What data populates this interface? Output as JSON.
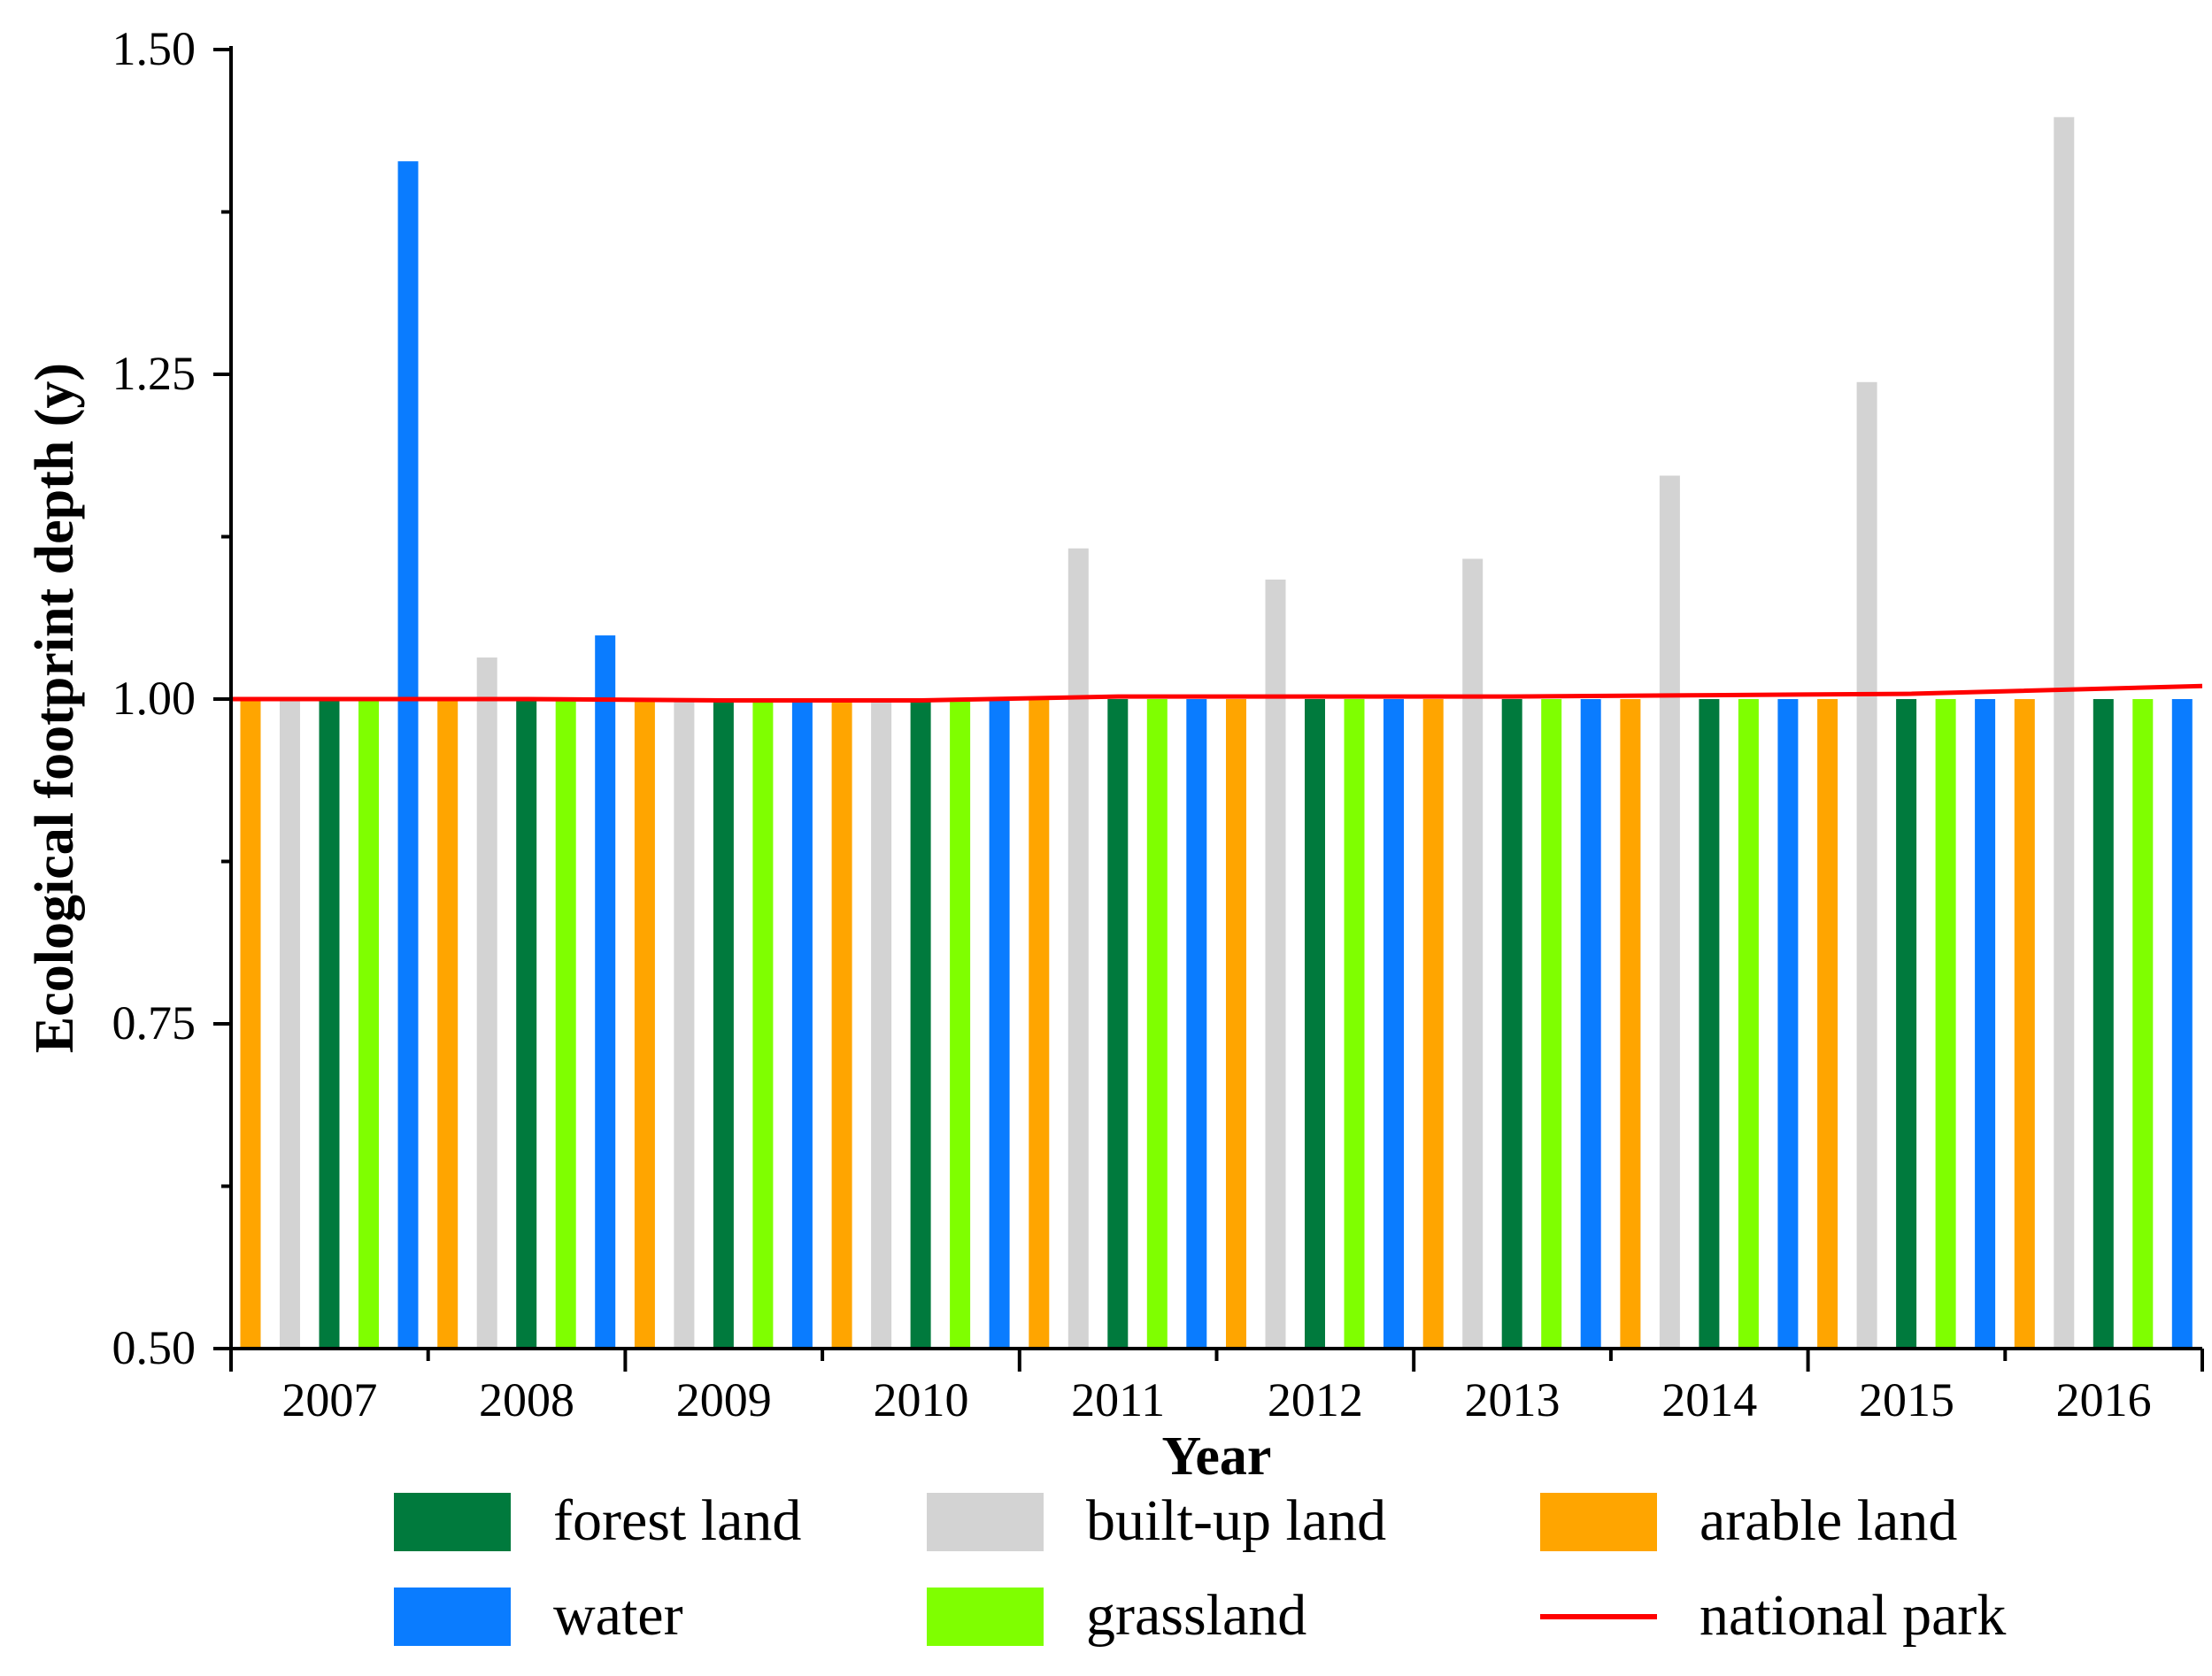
{
  "chart_data": {
    "type": "bar",
    "title": "",
    "xlabel": "Year",
    "ylabel": "Ecological footprint depth (y)",
    "ylim": [
      0.5,
      1.5
    ],
    "yticks": [
      "0.50",
      "0.75",
      "1.00",
      "1.25",
      "1.50"
    ],
    "categories": [
      "2007",
      "2008",
      "2009",
      "2010",
      "2011",
      "2012",
      "2013",
      "2014",
      "2015",
      "2016"
    ],
    "bar_order": [
      "arable land",
      "built-up land",
      "forest land",
      "grassland",
      "water"
    ],
    "series": [
      {
        "name": "arable land",
        "color": "#ffa500",
        "values": [
          1.0,
          1.0,
          1.0,
          1.0,
          1.0,
          1.0,
          1.0,
          1.0,
          1.0,
          1.0
        ]
      },
      {
        "name": "built-up land",
        "color": "#d3d3d3",
        "values": [
          1.0,
          1.032,
          1.0,
          1.0,
          1.116,
          1.092,
          1.108,
          1.172,
          1.244,
          1.448
        ]
      },
      {
        "name": "forest land",
        "color": "#007a3d",
        "values": [
          1.0,
          1.0,
          1.0,
          1.0,
          1.0,
          1.0,
          1.0,
          1.0,
          1.0,
          1.0
        ]
      },
      {
        "name": "grassland",
        "color": "#7fff00",
        "values": [
          1.0,
          1.0,
          1.0,
          1.0,
          1.0,
          1.0,
          1.0,
          1.0,
          1.0,
          1.0
        ]
      },
      {
        "name": "water",
        "color": "#0a7cff",
        "values": [
          1.414,
          1.049,
          1.0,
          1.0,
          1.0,
          1.0,
          1.0,
          1.0,
          1.0,
          1.0
        ]
      }
    ],
    "line": {
      "name": "national park",
      "color": "#ff0000",
      "values": [
        1.0,
        1.0,
        0.999,
        0.999,
        1.002,
        1.002,
        1.002,
        1.003,
        1.004,
        1.01
      ]
    },
    "legend": {
      "placement": "bottom",
      "entries": [
        {
          "label": "forest land",
          "kind": "bar",
          "color": "#007a3d"
        },
        {
          "label": "built-up land",
          "kind": "bar",
          "color": "#d3d3d3"
        },
        {
          "label": "arable land",
          "kind": "bar",
          "color": "#ffa500"
        },
        {
          "label": "water",
          "kind": "bar",
          "color": "#0a7cff"
        },
        {
          "label": "grassland",
          "kind": "bar",
          "color": "#7fff00"
        },
        {
          "label": "national park",
          "kind": "line",
          "color": "#ff0000"
        }
      ]
    }
  }
}
